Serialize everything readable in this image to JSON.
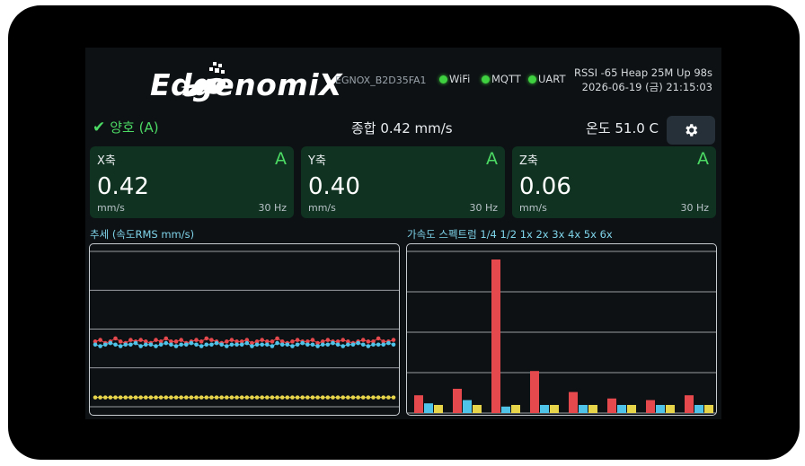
{
  "header": {
    "brand": "EdgenomiX",
    "device_id": "EGNOX_B2D35FA1",
    "connections": [
      {
        "label": "WiFi",
        "status": "connected"
      },
      {
        "label": "MQTT",
        "status": "connected"
      },
      {
        "label": "UART",
        "status": "connected"
      }
    ],
    "system_line": "RSSI -65  Heap 25M  Up 98s",
    "datetime": "2026-06-19 (금) 21:15:03"
  },
  "status": {
    "state_label": "양호 (A)",
    "total_label": "종합 0.42 mm/s",
    "temperature_label": "온도 51.0 C"
  },
  "axes": [
    {
      "name": "X축",
      "grade": "A",
      "value": "0.42",
      "unit": "mm/s",
      "freq": "30 Hz"
    },
    {
      "name": "Y축",
      "grade": "A",
      "value": "0.40",
      "unit": "mm/s",
      "freq": "30 Hz"
    },
    {
      "name": "Z축",
      "grade": "A",
      "value": "0.06",
      "unit": "mm/s",
      "freq": "30 Hz"
    }
  ],
  "trend": {
    "label": "추세 (속도RMS mm/s)"
  },
  "spectrum": {
    "label": "가속도 스펙트럼  1/4 1/2 1x 2x 3x 4x 5x 6x"
  },
  "colors": {
    "x": "#e5484d",
    "y": "#4fc3e8",
    "z": "#e6d44a",
    "ok": "#4cd964",
    "card_bg": "#0f3320"
  },
  "chart_data": [
    {
      "type": "line",
      "grid": true,
      "ylim": [
        0,
        1.0
      ],
      "series": [
        {
          "values": [
            0.42,
            0.43,
            0.41,
            0.42,
            0.44,
            0.42,
            0.41,
            0.43,
            0.42,
            0.43,
            0.42,
            0.41,
            0.43,
            0.42,
            0.44,
            0.42,
            0.42,
            0.43,
            0.41,
            0.42,
            0.43,
            0.42,
            0.44,
            0.43,
            0.42,
            0.41,
            0.42,
            0.43,
            0.42,
            0.42,
            0.43,
            0.41,
            0.42,
            0.43,
            0.42,
            0.42,
            0.44,
            0.42,
            0.41,
            0.42,
            0.43,
            0.42,
            0.42,
            0.43,
            0.41,
            0.42,
            0.43,
            0.42,
            0.42,
            0.43,
            0.42,
            0.41,
            0.42,
            0.43,
            0.42,
            0.42,
            0.44,
            0.42,
            0.42,
            0.43
          ]
        },
        {
          "values": [
            0.4,
            0.39,
            0.4,
            0.41,
            0.4,
            0.39,
            0.4,
            0.4,
            0.41,
            0.39,
            0.4,
            0.4,
            0.39,
            0.4,
            0.41,
            0.4,
            0.39,
            0.4,
            0.4,
            0.41,
            0.4,
            0.39,
            0.4,
            0.4,
            0.41,
            0.4,
            0.39,
            0.4,
            0.4,
            0.4,
            0.41,
            0.39,
            0.4,
            0.4,
            0.4,
            0.39,
            0.41,
            0.4,
            0.4,
            0.39,
            0.4,
            0.41,
            0.4,
            0.4,
            0.39,
            0.4,
            0.4,
            0.41,
            0.4,
            0.39,
            0.4,
            0.4,
            0.41,
            0.4,
            0.39,
            0.4,
            0.4,
            0.4,
            0.41,
            0.4
          ]
        },
        {
          "values": [
            0.06,
            0.06,
            0.06,
            0.06,
            0.06,
            0.06,
            0.06,
            0.06,
            0.06,
            0.06,
            0.06,
            0.06,
            0.06,
            0.06,
            0.06,
            0.06,
            0.06,
            0.06,
            0.06,
            0.06,
            0.06,
            0.06,
            0.06,
            0.06,
            0.06,
            0.06,
            0.06,
            0.06,
            0.06,
            0.06,
            0.06,
            0.06,
            0.06,
            0.06,
            0.06,
            0.06,
            0.06,
            0.06,
            0.06,
            0.06,
            0.06,
            0.06,
            0.06,
            0.06,
            0.06,
            0.06,
            0.06,
            0.06,
            0.06,
            0.06,
            0.06,
            0.06,
            0.06,
            0.06,
            0.06,
            0.06,
            0.06,
            0.06,
            0.06,
            0.06
          ]
        }
      ]
    },
    {
      "type": "bar",
      "grid": true,
      "categories": [
        "1/4",
        "1/2",
        "1x",
        "2x",
        "3x",
        "4x",
        "5x",
        "6x"
      ],
      "ylim": [
        0,
        1.0
      ],
      "series": [
        {
          "values": [
            0.11,
            0.15,
            0.95,
            0.26,
            0.13,
            0.09,
            0.08,
            0.11
          ]
        },
        {
          "values": [
            0.06,
            0.08,
            0.04,
            0.05,
            0.05,
            0.05,
            0.05,
            0.05
          ]
        },
        {
          "values": [
            0.05,
            0.05,
            0.05,
            0.05,
            0.05,
            0.05,
            0.05,
            0.05
          ]
        }
      ]
    }
  ]
}
